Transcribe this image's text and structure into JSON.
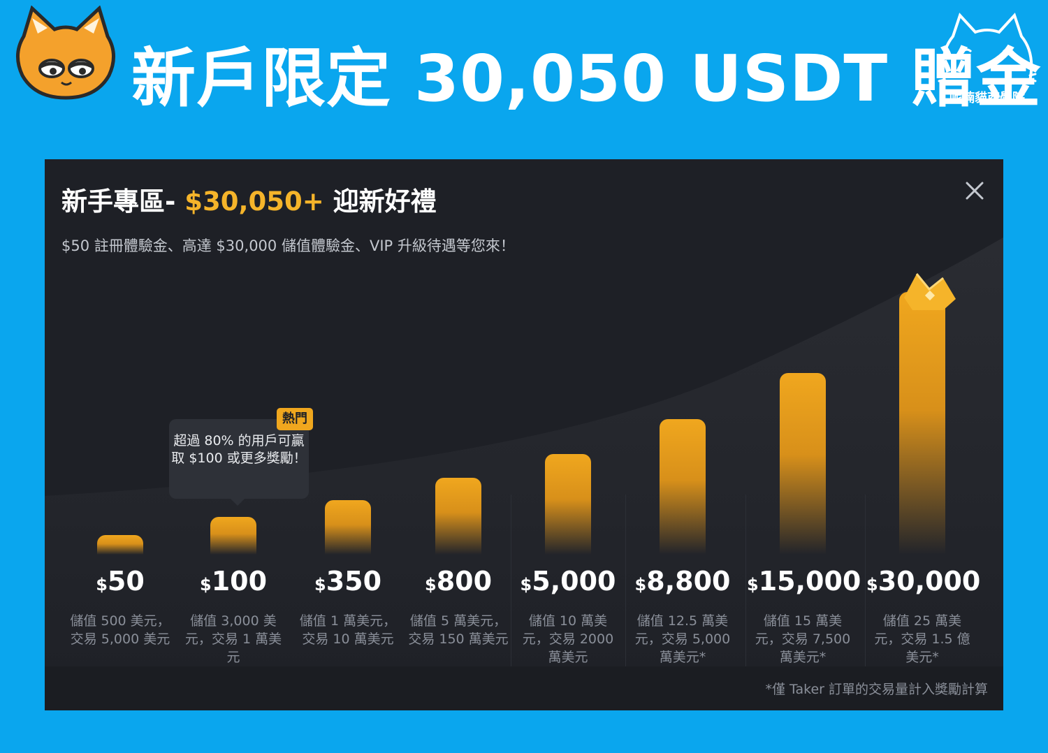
{
  "banner": {
    "title": "新戶限定 30,050 USDT 贈金",
    "brand_name": "呢喃貓商學院",
    "mascot_icon": "cat-face-icon",
    "logo_icon": "cat-outline-icon"
  },
  "panel": {
    "heading_prefix": "新手專區- ",
    "heading_accent": "$30,050+",
    "heading_suffix": " 迎新好禮",
    "subtitle": "$50 註冊體驗金、高達 $30,000 儲值體驗金、VIP 升級待遇等您來！",
    "close_icon": "close-icon",
    "tooltip": "超過 80% 的用戶可贏取 $100 或更多獎勵！",
    "hot_badge": "熱門",
    "footnote": "*僅 Taker 訂單的交易量計入獎勵計算",
    "accent_color": "#f5b42a"
  },
  "chart_data": {
    "type": "bar",
    "currency_symbol": "$",
    "categories": [
      "$50",
      "$100",
      "$350",
      "$800",
      "$5,000",
      "$8,800",
      "$15,000",
      "$30,000"
    ],
    "value_labels": [
      "50",
      "100",
      "350",
      "800",
      "5,000",
      "8,800",
      "15,000",
      "30,000"
    ],
    "values": [
      50,
      100,
      350,
      800,
      5000,
      8800,
      15000,
      30000
    ],
    "descriptions": [
      "儲值 500 美元，交易 5,000 美元",
      "儲值 3,000 美元，交易 1 萬美元",
      "儲值 1 萬美元，交易 10 萬美元",
      "儲值 5 萬美元，交易 150 萬美元",
      "儲值 10 萬美元，交易 2000 萬美元",
      "儲值 12.5 萬美元，交易 5,000 萬美元*",
      "儲值 15 萬美元，交易 7,500 萬美元*",
      "儲值 25 萬美元，交易 1.5 億美元*"
    ],
    "ordinal_heights": [
      1,
      2,
      3,
      4,
      5,
      6,
      7,
      8
    ],
    "bar_color": "#f0a71e",
    "title": "",
    "xlabel": "",
    "ylabel": ""
  }
}
